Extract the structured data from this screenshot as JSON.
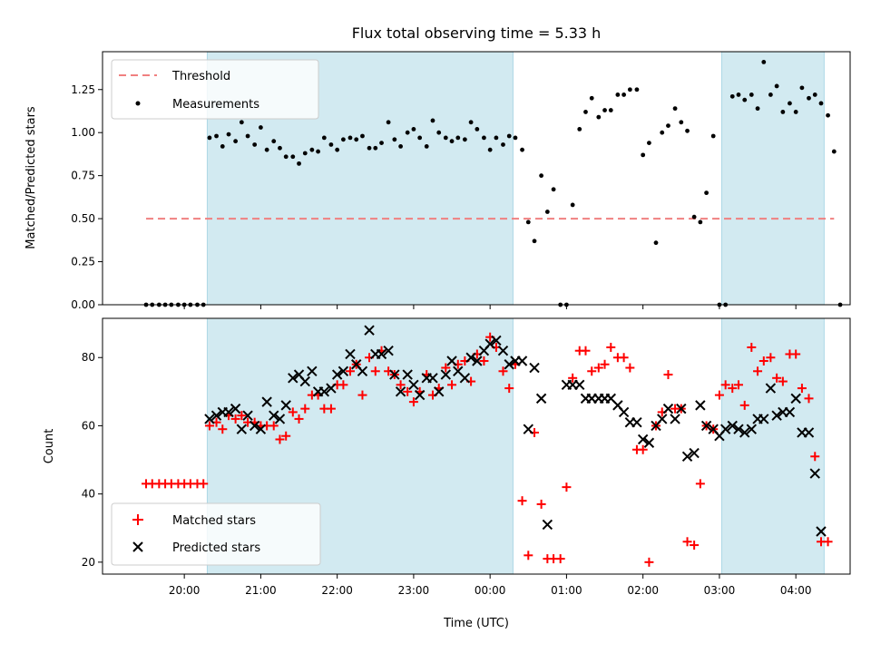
{
  "chart_data": {
    "title": "Flux total observing time = 5.33 h",
    "xlabel": "Time (UTC)",
    "x_tick_labels": [
      "20:00",
      "21:00",
      "22:00",
      "23:00",
      "00:00",
      "01:00",
      "02:00",
      "03:00",
      "04:00"
    ],
    "x_tick_hours": [
      20,
      21,
      22,
      23,
      24,
      25,
      26,
      27,
      28
    ],
    "x_range_hours": [
      18.93,
      28.71
    ],
    "shaded_intervals_hours": [
      [
        20.3,
        24.3
      ],
      [
        27.03,
        28.37
      ]
    ],
    "colors": {
      "shade": "#add8e6",
      "threshold": "#f08080",
      "matched": "#ff0000",
      "predicted": "#000000",
      "points": "#000000"
    },
    "top": {
      "type": "scatter",
      "ylabel": "Matched/Predicted stars",
      "ylim": [
        0,
        1.47
      ],
      "y_tick_values": [
        0,
        0.25,
        0.5,
        0.75,
        1.0,
        1.25
      ],
      "y_tick_labels": [
        "0.00",
        "0.25",
        "0.50",
        "0.75",
        "1.00",
        "1.25"
      ],
      "legend": [
        "Threshold",
        "Measurements"
      ],
      "legend_position": "upper-left",
      "threshold": {
        "value": 0.5,
        "x_range_hours": [
          19.5,
          28.5
        ]
      },
      "measurements": [
        [
          19.5,
          0
        ],
        [
          19.58,
          0
        ],
        [
          19.67,
          0
        ],
        [
          19.75,
          0
        ],
        [
          19.83,
          0
        ],
        [
          19.92,
          0
        ],
        [
          20.0,
          0
        ],
        [
          20.08,
          0
        ],
        [
          20.17,
          0
        ],
        [
          20.25,
          0
        ],
        [
          20.33,
          0.97
        ],
        [
          20.42,
          0.98
        ],
        [
          20.5,
          0.92
        ],
        [
          20.58,
          0.99
        ],
        [
          20.67,
          0.95
        ],
        [
          20.75,
          1.06
        ],
        [
          20.83,
          0.98
        ],
        [
          20.92,
          0.93
        ],
        [
          21.0,
          1.03
        ],
        [
          21.08,
          0.9
        ],
        [
          21.17,
          0.95
        ],
        [
          21.25,
          0.91
        ],
        [
          21.33,
          0.86
        ],
        [
          21.42,
          0.86
        ],
        [
          21.5,
          0.82
        ],
        [
          21.58,
          0.88
        ],
        [
          21.67,
          0.9
        ],
        [
          21.75,
          0.89
        ],
        [
          21.83,
          0.97
        ],
        [
          21.92,
          0.93
        ],
        [
          22.0,
          0.9
        ],
        [
          22.08,
          0.96
        ],
        [
          22.17,
          0.97
        ],
        [
          22.25,
          0.96
        ],
        [
          22.33,
          0.98
        ],
        [
          22.42,
          0.91
        ],
        [
          22.5,
          0.91
        ],
        [
          22.58,
          0.94
        ],
        [
          22.67,
          1.06
        ],
        [
          22.75,
          0.96
        ],
        [
          22.83,
          0.92
        ],
        [
          22.92,
          1.0
        ],
        [
          23.0,
          1.02
        ],
        [
          23.08,
          0.97
        ],
        [
          23.17,
          0.92
        ],
        [
          23.25,
          1.07
        ],
        [
          23.33,
          1.0
        ],
        [
          23.42,
          0.97
        ],
        [
          23.5,
          0.95
        ],
        [
          23.58,
          0.97
        ],
        [
          23.67,
          0.96
        ],
        [
          23.75,
          1.06
        ],
        [
          23.83,
          1.02
        ],
        [
          23.92,
          0.97
        ],
        [
          24.0,
          0.9
        ],
        [
          24.08,
          0.97
        ],
        [
          24.17,
          0.93
        ],
        [
          24.25,
          0.98
        ],
        [
          24.33,
          0.97
        ],
        [
          24.42,
          0.9
        ],
        [
          24.5,
          0.48
        ],
        [
          24.58,
          0.37
        ],
        [
          24.67,
          0.75
        ],
        [
          24.75,
          0.54
        ],
        [
          24.83,
          0.67
        ],
        [
          24.92,
          0.0
        ],
        [
          25.0,
          0.0
        ],
        [
          25.08,
          0.58
        ],
        [
          25.17,
          1.02
        ],
        [
          25.25,
          1.12
        ],
        [
          25.33,
          1.2
        ],
        [
          25.42,
          1.09
        ],
        [
          25.5,
          1.13
        ],
        [
          25.58,
          1.13
        ],
        [
          25.67,
          1.22
        ],
        [
          25.75,
          1.22
        ],
        [
          25.83,
          1.25
        ],
        [
          25.92,
          1.25
        ],
        [
          26.0,
          0.87
        ],
        [
          26.08,
          0.94
        ],
        [
          26.17,
          0.36
        ],
        [
          26.25,
          1.0
        ],
        [
          26.33,
          1.04
        ],
        [
          26.42,
          1.14
        ],
        [
          26.5,
          1.06
        ],
        [
          26.58,
          1.01
        ],
        [
          26.67,
          0.51
        ],
        [
          26.75,
          0.48
        ],
        [
          26.83,
          0.65
        ],
        [
          26.92,
          0.98
        ],
        [
          27.0,
          0.0
        ],
        [
          27.08,
          0.0
        ],
        [
          27.17,
          1.21
        ],
        [
          27.25,
          1.22
        ],
        [
          27.33,
          1.19
        ],
        [
          27.42,
          1.22
        ],
        [
          27.5,
          1.14
        ],
        [
          27.58,
          1.41
        ],
        [
          27.67,
          1.22
        ],
        [
          27.75,
          1.27
        ],
        [
          27.83,
          1.12
        ],
        [
          27.92,
          1.17
        ],
        [
          28.0,
          1.12
        ],
        [
          28.08,
          1.26
        ],
        [
          28.17,
          1.2
        ],
        [
          28.25,
          1.22
        ],
        [
          28.33,
          1.17
        ],
        [
          28.42,
          1.1
        ],
        [
          28.5,
          0.89
        ],
        [
          28.58,
          0.0
        ]
      ]
    },
    "bottom": {
      "type": "scatter",
      "ylabel": "Count",
      "ylim": [
        16.5,
        91.5
      ],
      "y_tick_values": [
        20,
        40,
        60,
        80
      ],
      "y_tick_labels": [
        "20",
        "40",
        "60",
        "80"
      ],
      "legend": [
        "Matched stars",
        "Predicted stars"
      ],
      "legend_position": "lower-left",
      "matched": [
        [
          19.5,
          43
        ],
        [
          19.58,
          43
        ],
        [
          19.67,
          43
        ],
        [
          19.75,
          43
        ],
        [
          19.83,
          43
        ],
        [
          19.92,
          43
        ],
        [
          20.0,
          43
        ],
        [
          20.08,
          43
        ],
        [
          20.17,
          43
        ],
        [
          20.25,
          43
        ],
        [
          20.33,
          60
        ],
        [
          20.42,
          61
        ],
        [
          20.5,
          59
        ],
        [
          20.58,
          63
        ],
        [
          20.67,
          62
        ],
        [
          20.75,
          63
        ],
        [
          20.83,
          61
        ],
        [
          20.92,
          61
        ],
        [
          21.0,
          60
        ],
        [
          21.08,
          60
        ],
        [
          21.17,
          60
        ],
        [
          21.25,
          56
        ],
        [
          21.33,
          57
        ],
        [
          21.42,
          64
        ],
        [
          21.5,
          62
        ],
        [
          21.58,
          65
        ],
        [
          21.67,
          69
        ],
        [
          21.75,
          69
        ],
        [
          21.83,
          65
        ],
        [
          21.92,
          65
        ],
        [
          22.0,
          72
        ],
        [
          22.08,
          72
        ],
        [
          22.17,
          76
        ],
        [
          22.25,
          78
        ],
        [
          22.33,
          69
        ],
        [
          22.42,
          80
        ],
        [
          22.5,
          76
        ],
        [
          22.58,
          82
        ],
        [
          22.67,
          76
        ],
        [
          22.75,
          75
        ],
        [
          22.83,
          72
        ],
        [
          22.92,
          70
        ],
        [
          23.0,
          67
        ],
        [
          23.08,
          70
        ],
        [
          23.17,
          75
        ],
        [
          23.25,
          69
        ],
        [
          23.33,
          71
        ],
        [
          23.42,
          77
        ],
        [
          23.5,
          72
        ],
        [
          23.58,
          78
        ],
        [
          23.67,
          79
        ],
        [
          23.75,
          73
        ],
        [
          23.83,
          81
        ],
        [
          23.92,
          79
        ],
        [
          24.0,
          86
        ],
        [
          24.08,
          83
        ],
        [
          24.17,
          76
        ],
        [
          24.25,
          71
        ],
        [
          24.33,
          78
        ],
        [
          24.42,
          38
        ],
        [
          24.5,
          22
        ],
        [
          24.58,
          58
        ],
        [
          24.67,
          37
        ],
        [
          24.75,
          21
        ],
        [
          24.83,
          21
        ],
        [
          24.92,
          21
        ],
        [
          25.0,
          42
        ],
        [
          25.08,
          74
        ],
        [
          25.17,
          82
        ],
        [
          25.25,
          82
        ],
        [
          25.33,
          76
        ],
        [
          25.42,
          77
        ],
        [
          25.5,
          78
        ],
        [
          25.58,
          83
        ],
        [
          25.67,
          80
        ],
        [
          25.75,
          80
        ],
        [
          25.83,
          77
        ],
        [
          25.92,
          53
        ],
        [
          26.0,
          53
        ],
        [
          26.08,
          20
        ],
        [
          26.17,
          60
        ],
        [
          26.25,
          64
        ],
        [
          26.33,
          75
        ],
        [
          26.42,
          65
        ],
        [
          26.5,
          65
        ],
        [
          26.58,
          26
        ],
        [
          26.67,
          25
        ],
        [
          26.75,
          43
        ],
        [
          26.83,
          60
        ],
        [
          26.92,
          59
        ],
        [
          27.0,
          69
        ],
        [
          27.08,
          72
        ],
        [
          27.17,
          71
        ],
        [
          27.25,
          72
        ],
        [
          27.33,
          66
        ],
        [
          27.42,
          83
        ],
        [
          27.5,
          76
        ],
        [
          27.58,
          79
        ],
        [
          27.67,
          80
        ],
        [
          27.75,
          74
        ],
        [
          27.83,
          73
        ],
        [
          27.92,
          81
        ],
        [
          28.0,
          81
        ],
        [
          28.08,
          71
        ],
        [
          28.17,
          68
        ],
        [
          28.25,
          51
        ],
        [
          28.33,
          26
        ],
        [
          28.42,
          26
        ]
      ],
      "predicted": [
        [
          20.33,
          62
        ],
        [
          20.42,
          63
        ],
        [
          20.5,
          64
        ],
        [
          20.58,
          64
        ],
        [
          20.67,
          65
        ],
        [
          20.75,
          59
        ],
        [
          20.83,
          63
        ],
        [
          20.92,
          60
        ],
        [
          21.0,
          59
        ],
        [
          21.08,
          67
        ],
        [
          21.17,
          63
        ],
        [
          21.25,
          62
        ],
        [
          21.33,
          66
        ],
        [
          21.42,
          74
        ],
        [
          21.5,
          75
        ],
        [
          21.58,
          73
        ],
        [
          21.67,
          76
        ],
        [
          21.75,
          70
        ],
        [
          21.83,
          70
        ],
        [
          21.92,
          71
        ],
        [
          22.0,
          75
        ],
        [
          22.08,
          76
        ],
        [
          22.17,
          81
        ],
        [
          22.25,
          78
        ],
        [
          22.33,
          76
        ],
        [
          22.42,
          88
        ],
        [
          22.5,
          81
        ],
        [
          22.58,
          81
        ],
        [
          22.67,
          82
        ],
        [
          22.75,
          75
        ],
        [
          22.83,
          70
        ],
        [
          22.92,
          75
        ],
        [
          23.0,
          72
        ],
        [
          23.08,
          69
        ],
        [
          23.17,
          74
        ],
        [
          23.25,
          74
        ],
        [
          23.33,
          70
        ],
        [
          23.42,
          75
        ],
        [
          23.5,
          79
        ],
        [
          23.58,
          76
        ],
        [
          23.67,
          74
        ],
        [
          23.75,
          80
        ],
        [
          23.83,
          79
        ],
        [
          23.92,
          82
        ],
        [
          24.0,
          84
        ],
        [
          24.08,
          85
        ],
        [
          24.17,
          82
        ],
        [
          24.25,
          78
        ],
        [
          24.33,
          79
        ],
        [
          24.42,
          79
        ],
        [
          24.5,
          59
        ],
        [
          24.58,
          77
        ],
        [
          24.67,
          68
        ],
        [
          24.75,
          31
        ],
        [
          25.0,
          72
        ],
        [
          25.08,
          72
        ],
        [
          25.17,
          72
        ],
        [
          25.25,
          68
        ],
        [
          25.33,
          68
        ],
        [
          25.42,
          68
        ],
        [
          25.5,
          68
        ],
        [
          25.58,
          68
        ],
        [
          25.67,
          66
        ],
        [
          25.75,
          64
        ],
        [
          25.83,
          61
        ],
        [
          25.92,
          61
        ],
        [
          26.0,
          56
        ],
        [
          26.08,
          55
        ],
        [
          26.17,
          60
        ],
        [
          26.25,
          62
        ],
        [
          26.33,
          65
        ],
        [
          26.42,
          62
        ],
        [
          26.5,
          65
        ],
        [
          26.58,
          51
        ],
        [
          26.67,
          52
        ],
        [
          26.75,
          66
        ],
        [
          26.83,
          60
        ],
        [
          26.92,
          59
        ],
        [
          27.0,
          57
        ],
        [
          27.08,
          59
        ],
        [
          27.17,
          60
        ],
        [
          27.25,
          59
        ],
        [
          27.33,
          58
        ],
        [
          27.42,
          59
        ],
        [
          27.5,
          62
        ],
        [
          27.58,
          62
        ],
        [
          27.67,
          71
        ],
        [
          27.75,
          63
        ],
        [
          27.83,
          64
        ],
        [
          27.92,
          64
        ],
        [
          28.0,
          68
        ],
        [
          28.08,
          58
        ],
        [
          28.17,
          58
        ],
        [
          28.25,
          46
        ],
        [
          28.33,
          29
        ]
      ]
    }
  }
}
